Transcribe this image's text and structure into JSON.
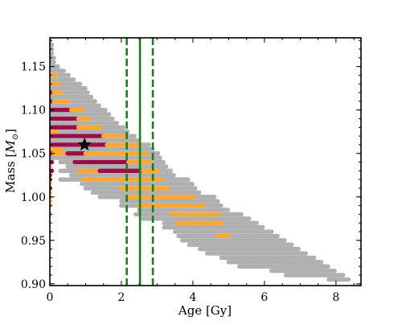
{
  "chart_data": {
    "type": "scatter",
    "xlabel": "Age [Gy]",
    "ylabel_text": "Mass [",
    "ylabel_sym": "M",
    "ylabel_sub": "⊙",
    "ylabel_close": "]",
    "xlim": [
      0,
      8.7
    ],
    "ylim": [
      0.898,
      1.183
    ],
    "x_ticks": [
      0,
      2,
      4,
      6,
      8
    ],
    "x_tick_labels": [
      "0",
      "2",
      "4",
      "6",
      "8"
    ],
    "y_ticks": [
      0.9,
      0.95,
      1.0,
      1.05,
      1.1,
      1.15
    ],
    "y_tick_labels": [
      "0.90",
      "0.95",
      "1.00",
      "1.05",
      "1.10",
      "1.15"
    ],
    "grid": false,
    "colors": {
      "gray": "#b0b0b0",
      "orange": "#fba833",
      "maroon": "#9b0d4a",
      "green": "#16801e",
      "star": "#000000"
    },
    "mass_step": 0.005,
    "rows": [
      {
        "m": 1.18,
        "segs": [
          [
            "g",
            0,
            0.05
          ]
        ]
      },
      {
        "m": 1.175,
        "segs": [
          [
            "g",
            0,
            0.06
          ]
        ]
      },
      {
        "m": 1.17,
        "segs": [
          [
            "g",
            0,
            0.08
          ]
        ]
      },
      {
        "m": 1.165,
        "segs": [
          [
            "g",
            0,
            0.1
          ]
        ]
      },
      {
        "m": 1.16,
        "segs": [
          [
            "g",
            0,
            0.12
          ]
        ]
      },
      {
        "m": 1.155,
        "segs": [
          [
            "g",
            0,
            0.15
          ]
        ]
      },
      {
        "m": 1.15,
        "segs": [
          [
            "g",
            0,
            0.25
          ]
        ]
      },
      {
        "m": 1.145,
        "segs": [
          [
            "g",
            0,
            0.4
          ]
        ]
      },
      {
        "m": 1.14,
        "segs": [
          [
            "o",
            0,
            0.3
          ],
          [
            "g",
            0.3,
            0.55
          ]
        ]
      },
      {
        "m": 1.135,
        "segs": [
          [
            "g",
            0,
            0.7
          ]
        ]
      },
      {
        "m": 1.13,
        "segs": [
          [
            "m",
            0,
            0.05
          ],
          [
            "o",
            0.05,
            0.35
          ],
          [
            "g",
            0.35,
            0.85
          ]
        ]
      },
      {
        "m": 1.125,
        "segs": [
          [
            "g",
            0,
            1.0
          ]
        ]
      },
      {
        "m": 1.12,
        "segs": [
          [
            "m",
            0,
            0.1
          ],
          [
            "o",
            0.1,
            0.45
          ],
          [
            "g",
            0.45,
            1.1
          ]
        ]
      },
      {
        "m": 1.115,
        "segs": [
          [
            "g",
            0,
            1.2
          ]
        ]
      },
      {
        "m": 1.11,
        "segs": [
          [
            "m",
            0,
            0.1
          ],
          [
            "o",
            0.1,
            0.6
          ],
          [
            "g",
            0.6,
            1.3
          ]
        ]
      },
      {
        "m": 1.105,
        "segs": [
          [
            "g",
            0,
            1.4
          ]
        ]
      },
      {
        "m": 1.1,
        "segs": [
          [
            "m",
            0,
            0.6
          ],
          [
            "o",
            0.6,
            1.0
          ],
          [
            "g",
            1.0,
            1.55
          ]
        ]
      },
      {
        "m": 1.095,
        "segs": [
          [
            "g",
            0,
            1.7
          ]
        ]
      },
      {
        "m": 1.09,
        "segs": [
          [
            "m",
            0,
            0.8
          ],
          [
            "o",
            0.8,
            1.2
          ],
          [
            "g",
            1.2,
            1.8
          ]
        ]
      },
      {
        "m": 1.085,
        "segs": [
          [
            "g",
            0,
            1.9
          ]
        ]
      },
      {
        "m": 1.08,
        "segs": [
          [
            "m",
            0,
            0.8
          ],
          [
            "o",
            0.8,
            1.5
          ],
          [
            "g",
            1.5,
            2.1
          ]
        ]
      },
      {
        "m": 1.075,
        "segs": [
          [
            "o",
            0,
            0.3
          ],
          [
            "g",
            0.3,
            2.2
          ]
        ]
      },
      {
        "m": 1.07,
        "segs": [
          [
            "m",
            0,
            1.5
          ],
          [
            "o",
            1.5,
            2.2
          ],
          [
            "g",
            2.2,
            2.4
          ]
        ]
      },
      {
        "m": 1.065,
        "segs": [
          [
            "g",
            0,
            2.5
          ]
        ]
      },
      {
        "m": 1.06,
        "segs": [
          [
            "m",
            0,
            1.6
          ],
          [
            "o",
            1.6,
            2.6
          ],
          [
            "g",
            2.6,
            2.8
          ]
        ]
      },
      {
        "m": 1.055,
        "segs": [
          [
            "o",
            0,
            0.4
          ],
          [
            "g",
            0.4,
            2.9
          ]
        ]
      },
      {
        "m": 1.05,
        "segs": [
          [
            "m",
            0,
            0.1
          ],
          [
            "o",
            0.1,
            0.5
          ],
          [
            "m",
            0.5,
            1.0
          ],
          [
            "o",
            1.0,
            2.8
          ],
          [
            "g",
            2.8,
            3.05
          ]
        ]
      },
      {
        "m": 1.045,
        "segs": [
          [
            "g",
            0,
            3.1
          ]
        ]
      },
      {
        "m": 1.04,
        "segs": [
          [
            "m",
            0,
            0.1
          ],
          [
            "g",
            0.3,
            0.7
          ],
          [
            "m",
            0.7,
            2.2
          ],
          [
            "o",
            2.2,
            2.9
          ],
          [
            "g",
            2.9,
            3.2
          ]
        ]
      },
      {
        "m": 1.035,
        "segs": [
          [
            "o",
            0,
            0.05
          ],
          [
            "g",
            0.5,
            3.3
          ]
        ]
      },
      {
        "m": 1.03,
        "segs": [
          [
            "m",
            0,
            0.1
          ],
          [
            "g",
            0.3,
            0.8
          ],
          [
            "o",
            0.8,
            1.4
          ],
          [
            "m",
            1.4,
            2.6
          ],
          [
            "o",
            2.6,
            3.1
          ],
          [
            "g",
            3.1,
            3.4
          ]
        ]
      },
      {
        "m": 1.025,
        "segs": [
          [
            "m",
            0,
            0.05
          ],
          [
            "g",
            0.6,
            3.5
          ]
        ]
      },
      {
        "m": 1.02,
        "segs": [
          [
            "m",
            0,
            0.05
          ],
          [
            "g",
            0.3,
            0.95
          ],
          [
            "o",
            0.95,
            3.2
          ],
          [
            "g",
            3.2,
            3.9
          ]
        ]
      },
      {
        "m": 1.015,
        "segs": [
          [
            "o",
            0,
            0.05
          ],
          [
            "g",
            0.9,
            4.0
          ]
        ]
      },
      {
        "m": 1.01,
        "segs": [
          [
            "m",
            0,
            0.05
          ],
          [
            "g",
            1.0,
            2.0
          ],
          [
            "o",
            2.0,
            3.4
          ],
          [
            "g",
            3.4,
            4.1
          ]
        ]
      },
      {
        "m": 1.005,
        "segs": [
          [
            "o",
            0,
            0.05
          ],
          [
            "g",
            1.2,
            4.2
          ]
        ]
      },
      {
        "m": 1.0,
        "segs": [
          [
            "o",
            0,
            0.05
          ],
          [
            "g",
            1.4,
            2.2
          ],
          [
            "o",
            2.2,
            4.1
          ],
          [
            "g",
            4.1,
            4.6
          ]
        ]
      },
      {
        "m": 0.995,
        "segs": [
          [
            "o",
            0,
            0.05
          ],
          [
            "g",
            2.0,
            4.7
          ]
        ]
      },
      {
        "m": 0.99,
        "segs": [
          [
            "o",
            0,
            0.05
          ],
          [
            "g",
            2.0,
            2.5
          ],
          [
            "o",
            2.5,
            4.4
          ],
          [
            "g",
            4.4,
            4.8
          ]
        ]
      },
      {
        "m": 0.985,
        "segs": [
          [
            "g",
            2.5,
            5.0
          ]
        ]
      },
      {
        "m": 0.98,
        "segs": [
          [
            "o",
            0,
            0.05
          ],
          [
            "g",
            2.4,
            3.4
          ],
          [
            "o",
            3.4,
            4.8
          ],
          [
            "g",
            4.8,
            5.4
          ]
        ]
      },
      {
        "m": 0.975,
        "segs": [
          [
            "g",
            2.6,
            5.6
          ]
        ]
      },
      {
        "m": 0.97,
        "segs": [
          [
            "g",
            3.2,
            3.6
          ],
          [
            "o",
            3.6,
            4.9
          ],
          [
            "g",
            4.9,
            5.8
          ]
        ]
      },
      {
        "m": 0.965,
        "segs": [
          [
            "g",
            3.2,
            6.0
          ]
        ]
      },
      {
        "m": 0.96,
        "segs": [
          [
            "g",
            3.5,
            6.2
          ]
        ]
      },
      {
        "m": 0.955,
        "segs": [
          [
            "g",
            3.6,
            4.7
          ],
          [
            "o",
            4.7,
            5.1
          ],
          [
            "g",
            5.1,
            6.4
          ]
        ]
      },
      {
        "m": 0.95,
        "segs": [
          [
            "g",
            3.7,
            6.6
          ]
        ]
      },
      {
        "m": 0.945,
        "segs": [
          [
            "g",
            3.9,
            6.8
          ]
        ]
      },
      {
        "m": 0.94,
        "segs": [
          [
            "g",
            4.2,
            7.0
          ]
        ]
      },
      {
        "m": 0.935,
        "segs": [
          [
            "g",
            4.4,
            7.2
          ]
        ]
      },
      {
        "m": 0.93,
        "segs": [
          [
            "g",
            4.8,
            7.4
          ]
        ]
      },
      {
        "m": 0.925,
        "segs": [
          [
            "g",
            5.0,
            7.6
          ]
        ]
      },
      {
        "m": 0.92,
        "segs": [
          [
            "g",
            5.3,
            7.8
          ]
        ]
      },
      {
        "m": 0.915,
        "segs": [
          [
            "g",
            6.2,
            8.0
          ]
        ]
      },
      {
        "m": 0.91,
        "segs": [
          [
            "g",
            6.6,
            8.2
          ]
        ]
      },
      {
        "m": 0.905,
        "segs": [
          [
            "g",
            7.8,
            8.4
          ]
        ]
      }
    ],
    "vlines": [
      {
        "x": 2.52,
        "style": "solid"
      },
      {
        "x": 2.15,
        "style": "dashed"
      },
      {
        "x": 2.88,
        "style": "dashed"
      }
    ],
    "star": {
      "x": 0.97,
      "y": 1.06
    }
  }
}
